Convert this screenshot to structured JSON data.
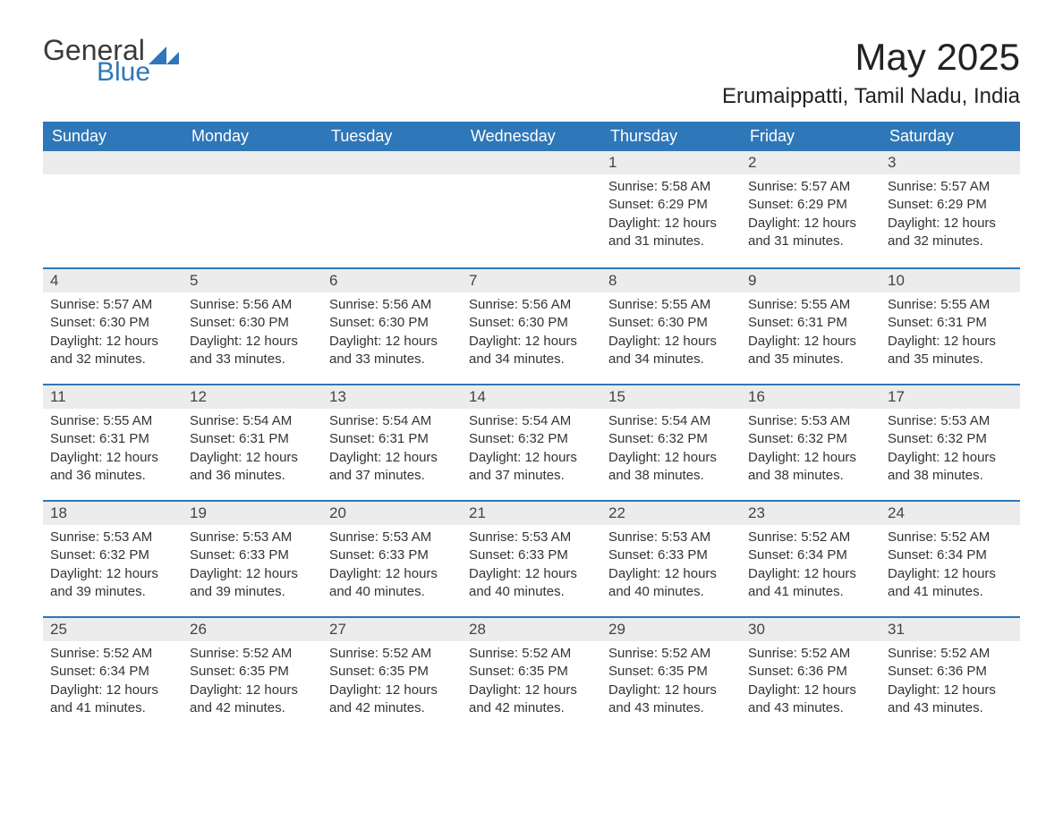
{
  "brand": {
    "text_general": "General",
    "text_blue": "Blue",
    "shape_color": "#2e77b8"
  },
  "title": "May 2025",
  "location": "Erumaippatti, Tamil Nadu, India",
  "colors": {
    "header_bg": "#2e77b8",
    "header_text": "#ffffff",
    "daynum_bg": "#ececec",
    "row_border": "#2e77b8",
    "body_text": "#333333",
    "page_bg": "#ffffff"
  },
  "typography": {
    "title_fontsize": 42,
    "location_fontsize": 24,
    "dayheader_fontsize": 18,
    "daynum_fontsize": 17,
    "body_fontsize": 15
  },
  "day_headers": [
    "Sunday",
    "Monday",
    "Tuesday",
    "Wednesday",
    "Thursday",
    "Friday",
    "Saturday"
  ],
  "labels": {
    "sunrise": "Sunrise:",
    "sunset": "Sunset:",
    "daylight": "Daylight:"
  },
  "weeks": [
    [
      {
        "empty": true
      },
      {
        "empty": true
      },
      {
        "empty": true
      },
      {
        "empty": true
      },
      {
        "n": "1",
        "sunrise": "5:58 AM",
        "sunset": "6:29 PM",
        "daylight": "12 hours and 31 minutes."
      },
      {
        "n": "2",
        "sunrise": "5:57 AM",
        "sunset": "6:29 PM",
        "daylight": "12 hours and 31 minutes."
      },
      {
        "n": "3",
        "sunrise": "5:57 AM",
        "sunset": "6:29 PM",
        "daylight": "12 hours and 32 minutes."
      }
    ],
    [
      {
        "n": "4",
        "sunrise": "5:57 AM",
        "sunset": "6:30 PM",
        "daylight": "12 hours and 32 minutes."
      },
      {
        "n": "5",
        "sunrise": "5:56 AM",
        "sunset": "6:30 PM",
        "daylight": "12 hours and 33 minutes."
      },
      {
        "n": "6",
        "sunrise": "5:56 AM",
        "sunset": "6:30 PM",
        "daylight": "12 hours and 33 minutes."
      },
      {
        "n": "7",
        "sunrise": "5:56 AM",
        "sunset": "6:30 PM",
        "daylight": "12 hours and 34 minutes."
      },
      {
        "n": "8",
        "sunrise": "5:55 AM",
        "sunset": "6:30 PM",
        "daylight": "12 hours and 34 minutes."
      },
      {
        "n": "9",
        "sunrise": "5:55 AM",
        "sunset": "6:31 PM",
        "daylight": "12 hours and 35 minutes."
      },
      {
        "n": "10",
        "sunrise": "5:55 AM",
        "sunset": "6:31 PM",
        "daylight": "12 hours and 35 minutes."
      }
    ],
    [
      {
        "n": "11",
        "sunrise": "5:55 AM",
        "sunset": "6:31 PM",
        "daylight": "12 hours and 36 minutes."
      },
      {
        "n": "12",
        "sunrise": "5:54 AM",
        "sunset": "6:31 PM",
        "daylight": "12 hours and 36 minutes."
      },
      {
        "n": "13",
        "sunrise": "5:54 AM",
        "sunset": "6:31 PM",
        "daylight": "12 hours and 37 minutes."
      },
      {
        "n": "14",
        "sunrise": "5:54 AM",
        "sunset": "6:32 PM",
        "daylight": "12 hours and 37 minutes."
      },
      {
        "n": "15",
        "sunrise": "5:54 AM",
        "sunset": "6:32 PM",
        "daylight": "12 hours and 38 minutes."
      },
      {
        "n": "16",
        "sunrise": "5:53 AM",
        "sunset": "6:32 PM",
        "daylight": "12 hours and 38 minutes."
      },
      {
        "n": "17",
        "sunrise": "5:53 AM",
        "sunset": "6:32 PM",
        "daylight": "12 hours and 38 minutes."
      }
    ],
    [
      {
        "n": "18",
        "sunrise": "5:53 AM",
        "sunset": "6:32 PM",
        "daylight": "12 hours and 39 minutes."
      },
      {
        "n": "19",
        "sunrise": "5:53 AM",
        "sunset": "6:33 PM",
        "daylight": "12 hours and 39 minutes."
      },
      {
        "n": "20",
        "sunrise": "5:53 AM",
        "sunset": "6:33 PM",
        "daylight": "12 hours and 40 minutes."
      },
      {
        "n": "21",
        "sunrise": "5:53 AM",
        "sunset": "6:33 PM",
        "daylight": "12 hours and 40 minutes."
      },
      {
        "n": "22",
        "sunrise": "5:53 AM",
        "sunset": "6:33 PM",
        "daylight": "12 hours and 40 minutes."
      },
      {
        "n": "23",
        "sunrise": "5:52 AM",
        "sunset": "6:34 PM",
        "daylight": "12 hours and 41 minutes."
      },
      {
        "n": "24",
        "sunrise": "5:52 AM",
        "sunset": "6:34 PM",
        "daylight": "12 hours and 41 minutes."
      }
    ],
    [
      {
        "n": "25",
        "sunrise": "5:52 AM",
        "sunset": "6:34 PM",
        "daylight": "12 hours and 41 minutes."
      },
      {
        "n": "26",
        "sunrise": "5:52 AM",
        "sunset": "6:35 PM",
        "daylight": "12 hours and 42 minutes."
      },
      {
        "n": "27",
        "sunrise": "5:52 AM",
        "sunset": "6:35 PM",
        "daylight": "12 hours and 42 minutes."
      },
      {
        "n": "28",
        "sunrise": "5:52 AM",
        "sunset": "6:35 PM",
        "daylight": "12 hours and 42 minutes."
      },
      {
        "n": "29",
        "sunrise": "5:52 AM",
        "sunset": "6:35 PM",
        "daylight": "12 hours and 43 minutes."
      },
      {
        "n": "30",
        "sunrise": "5:52 AM",
        "sunset": "6:36 PM",
        "daylight": "12 hours and 43 minutes."
      },
      {
        "n": "31",
        "sunrise": "5:52 AM",
        "sunset": "6:36 PM",
        "daylight": "12 hours and 43 minutes."
      }
    ]
  ]
}
